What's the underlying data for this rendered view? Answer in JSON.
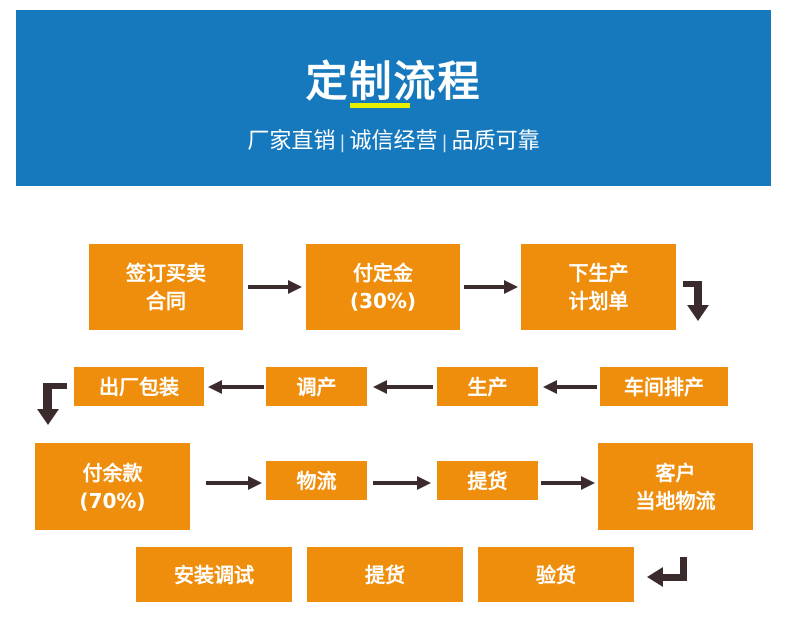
{
  "header": {
    "title": "定制流程",
    "subtitle": [
      "厂家直销",
      "诚信经营",
      "品质可靠"
    ],
    "separator": "|",
    "background_color": "#1779bd",
    "accent_color": "#e8f000"
  },
  "flow": {
    "box_color": "#ef8e0c",
    "arrow_color": "#3b2b2d",
    "steps": [
      "签订买卖\n合同",
      "付定金\n(30%)",
      "下生产\n计划单",
      "车间排产",
      "生产",
      "调产",
      "出厂包装",
      "付余款\n(70%)",
      "物流",
      "提货",
      "客户\n当地物流",
      "验货",
      "提货",
      "安装调试"
    ]
  }
}
